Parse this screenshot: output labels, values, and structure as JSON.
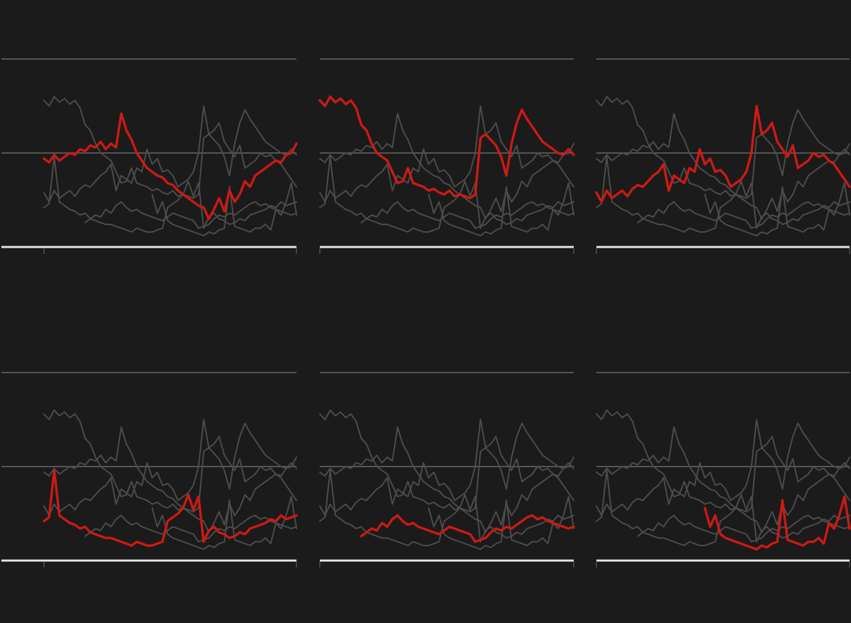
{
  "chart_data": {
    "type": "line",
    "x": [
      0,
      1,
      2,
      3,
      4,
      5,
      6,
      7,
      8,
      9,
      10,
      11,
      12,
      13,
      14,
      15,
      16,
      17,
      18,
      19,
      20,
      21,
      22,
      23,
      24,
      25,
      26,
      27,
      28,
      29,
      30,
      31,
      32,
      33,
      34,
      35,
      36,
      37,
      38,
      39,
      40,
      41,
      42,
      43,
      44,
      45,
      46,
      47,
      48,
      49
    ],
    "xlim": [
      0,
      49
    ],
    "xticks": [
      0,
      49
    ],
    "ylim": [
      0,
      100
    ],
    "yticks": [
      0,
      50,
      100
    ],
    "grid": true,
    "highlight_color": "#cc1a14",
    "muted_color": "#4d4d4d",
    "series": [
      {
        "values": [
          47,
          45,
          49,
          46,
          48,
          50,
          49,
          52,
          51,
          54,
          53,
          56,
          52,
          55,
          53,
          71,
          62,
          57,
          50,
          46,
          42,
          40,
          38,
          37,
          34,
          33,
          30,
          28,
          26,
          24,
          22,
          21,
          15,
          20,
          26,
          19,
          30,
          24,
          28,
          35,
          32,
          38,
          40,
          42,
          44,
          46,
          45,
          49,
          50,
          55
        ]
      },
      {
        "values": [
          78,
          75,
          80,
          77,
          79,
          76,
          78,
          74,
          65,
          62,
          55,
          50,
          48,
          46,
          40,
          34,
          35,
          42,
          34,
          33,
          32,
          30,
          31,
          29,
          28,
          30,
          27,
          28,
          27,
          26,
          28,
          58,
          60,
          57,
          54,
          48,
          38,
          55,
          66,
          73,
          68,
          64,
          60,
          56,
          54,
          52,
          50,
          49,
          52,
          49
        ]
      },
      {
        "values": [
          29,
          24,
          30,
          26,
          28,
          30,
          27,
          31,
          33,
          32,
          35,
          38,
          40,
          44,
          30,
          38,
          36,
          34,
          42,
          40,
          52,
          44,
          47,
          40,
          41,
          38,
          32,
          34,
          36,
          40,
          50,
          75,
          60,
          62,
          66,
          56,
          52,
          48,
          54,
          42,
          44,
          46,
          50,
          48,
          49,
          46,
          44,
          40,
          36,
          32
        ]
      },
      {
        "values": [
          21,
          23,
          48,
          24,
          22,
          20,
          19,
          17,
          18,
          15,
          14,
          13,
          12,
          12,
          11,
          10,
          9,
          8,
          10,
          9,
          8,
          8,
          9,
          10,
          21,
          23,
          25,
          28,
          35,
          27,
          34,
          10,
          16,
          18,
          15,
          14,
          12,
          13,
          15,
          14,
          17,
          18,
          19,
          20,
          22,
          21,
          24,
          22,
          23,
          24
        ]
      },
      {
        "values": [
          null,
          null,
          null,
          null,
          null,
          null,
          null,
          null,
          13,
          15,
          17,
          16,
          20,
          18,
          22,
          24,
          21,
          19,
          20,
          18,
          17,
          16,
          15,
          14,
          16,
          18,
          17,
          16,
          15,
          14,
          10,
          11,
          12,
          15,
          17,
          16,
          18,
          17,
          19,
          21,
          23,
          24,
          22,
          23,
          21,
          20,
          19,
          18,
          17,
          18
        ]
      },
      {
        "values": [
          null,
          null,
          null,
          null,
          null,
          null,
          null,
          null,
          null,
          null,
          null,
          null,
          null,
          null,
          null,
          null,
          null,
          null,
          null,
          null,
          null,
          28,
          18,
          24,
          14,
          12,
          11,
          10,
          9,
          8,
          7,
          6,
          8,
          7,
          9,
          10,
          32,
          11,
          10,
          9,
          8,
          10,
          10,
          12,
          9,
          20,
          17,
          24,
          34,
          17
        ]
      }
    ]
  }
}
